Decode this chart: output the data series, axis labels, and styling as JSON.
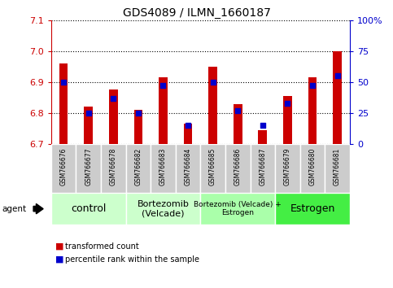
{
  "title": "GDS4089 / ILMN_1660187",
  "samples": [
    "GSM766676",
    "GSM766677",
    "GSM766678",
    "GSM766682",
    "GSM766683",
    "GSM766684",
    "GSM766685",
    "GSM766686",
    "GSM766687",
    "GSM766679",
    "GSM766680",
    "GSM766681"
  ],
  "transformed_count": [
    6.96,
    6.82,
    6.875,
    6.81,
    6.915,
    6.765,
    6.95,
    6.83,
    6.745,
    6.855,
    6.915,
    7.0
  ],
  "percentile_rank": [
    50,
    25,
    37,
    25,
    47,
    15,
    50,
    27,
    15,
    33,
    47,
    55
  ],
  "ylim_left": [
    6.7,
    7.1
  ],
  "ylim_right": [
    0,
    100
  ],
  "yticks_left": [
    6.7,
    6.8,
    6.9,
    7.0,
    7.1
  ],
  "yticks_right": [
    0,
    25,
    50,
    75,
    100
  ],
  "ytick_labels_right": [
    "0",
    "25",
    "50",
    "75",
    "100%"
  ],
  "groups": [
    {
      "label": "control",
      "start": 0,
      "end": 3,
      "color": "#ccffcc",
      "fontsize": 9
    },
    {
      "label": "Bortezomib\n(Velcade)",
      "start": 3,
      "end": 6,
      "color": "#ccffcc",
      "fontsize": 8
    },
    {
      "label": "Bortezomib (Velcade) +\nEstrogen",
      "start": 6,
      "end": 9,
      "color": "#aaffaa",
      "fontsize": 6.5
    },
    {
      "label": "Estrogen",
      "start": 9,
      "end": 12,
      "color": "#44ee44",
      "fontsize": 9
    }
  ],
  "bar_color_red": "#cc0000",
  "dot_color_blue": "#0000cc",
  "bar_width": 0.35,
  "legend_items": [
    {
      "color": "#cc0000",
      "label": "transformed count"
    },
    {
      "color": "#0000cc",
      "label": "percentile rank within the sample"
    }
  ],
  "grid_color": "black",
  "tick_label_color_left": "#cc0000",
  "tick_label_color_right": "#0000cc",
  "group_label_colors": [
    "#ccffcc",
    "#ccffcc",
    "#aaffaa",
    "#44ee44"
  ],
  "sample_bg_color": "#cccccc",
  "sample_edge_color": "#ffffff"
}
